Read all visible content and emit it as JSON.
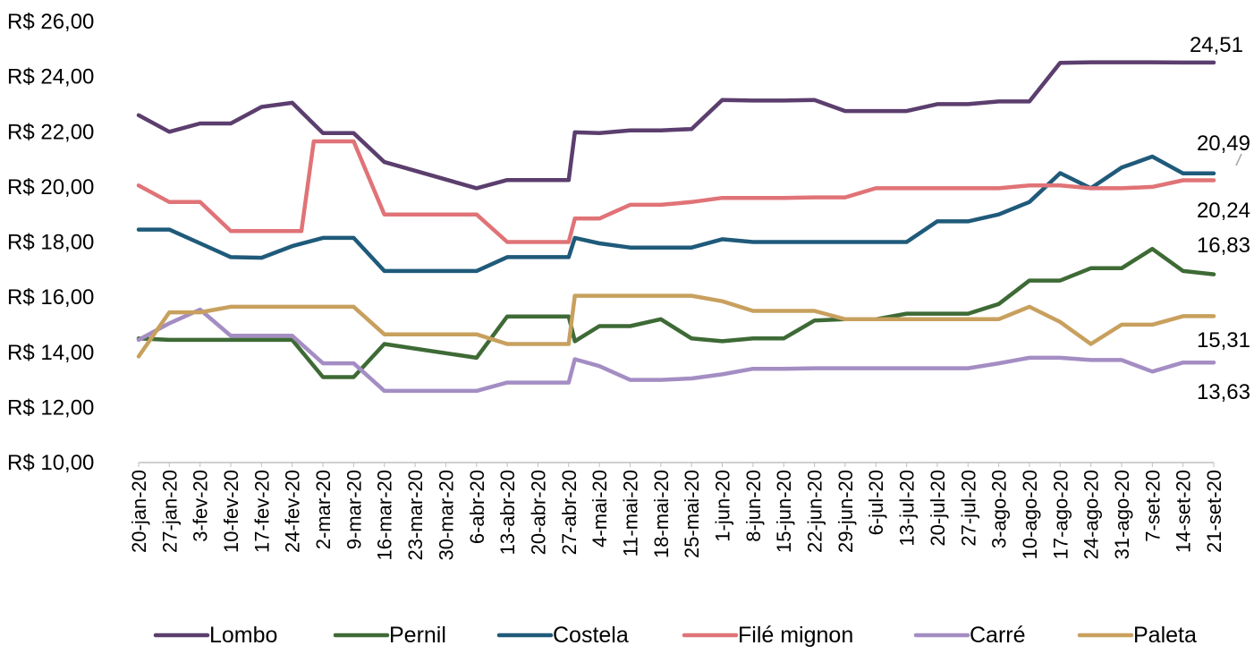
{
  "chart_data": {
    "type": "line",
    "title": "",
    "xlabel": "",
    "ylabel": "",
    "ylim": [
      10,
      26
    ],
    "y_ticks": [
      "R$ 10,00",
      "R$ 12,00",
      "R$ 14,00",
      "R$ 16,00",
      "R$ 18,00",
      "R$ 20,00",
      "R$ 22,00",
      "R$ 24,00",
      "R$ 26,00"
    ],
    "grid": false,
    "legend_position": "bottom",
    "x": [
      "20-jan-20",
      "27-jan-20",
      "3-fev-20",
      "10-fev-20",
      "17-fev-20",
      "24-fev-20",
      "2-mar-20",
      "9-mar-20",
      "16-mar-20",
      "23-mar-20",
      "30-mar-20",
      "6-abr-20",
      "13-abr-20",
      "20-abr-20",
      "27-abr-20",
      "4-mai-20",
      "11-mai-20",
      "18-mai-20",
      "25-mai-20",
      "1-jun-20",
      "8-jun-20",
      "15-jun-20",
      "22-jun-20",
      "29-jun-20",
      "6-jul-20",
      "13-jul-20",
      "20-jul-20",
      "27-jul-20",
      "3-ago-20",
      "10-ago-20",
      "17-ago-20",
      "24-ago-20",
      "31-ago-20",
      "7-set-20",
      "14-set-20",
      "21-set-20"
    ],
    "series": [
      {
        "name": "Lombo",
        "color": "#5b3e6e",
        "values": [
          22.6,
          22.0,
          22.3,
          22.3,
          22.9,
          23.05,
          21.95,
          21.95,
          20.9,
          20.45,
          20.0,
          19.95,
          20.25,
          20.25,
          20.25,
          21.95,
          22.05,
          22.05,
          22.1,
          23.15,
          23.13,
          23.13,
          23.15,
          22.75,
          22.75,
          22.75,
          23.0,
          23.0,
          23.1,
          23.1,
          24.5,
          24.52,
          24.52,
          24.52,
          24.51,
          24.51
        ],
        "path_points": [
          [
            0,
            22.6
          ],
          [
            1,
            22.0
          ],
          [
            2,
            22.3
          ],
          [
            3,
            22.3
          ],
          [
            4,
            22.9
          ],
          [
            5,
            23.05
          ],
          [
            6,
            21.95
          ],
          [
            7,
            21.95
          ],
          [
            8,
            20.9
          ],
          [
            11,
            19.95
          ],
          [
            12,
            20.25
          ],
          [
            14,
            20.25
          ],
          [
            14.2,
            21.98
          ],
          [
            15,
            21.95
          ],
          [
            16,
            22.05
          ],
          [
            17,
            22.05
          ],
          [
            18,
            22.1
          ],
          [
            19,
            23.15
          ],
          [
            20,
            23.13
          ],
          [
            21,
            23.13
          ],
          [
            22,
            23.15
          ],
          [
            23,
            22.75
          ],
          [
            24,
            22.75
          ],
          [
            25,
            22.75
          ],
          [
            26,
            23.0
          ],
          [
            27,
            23.0
          ],
          [
            28,
            23.1
          ],
          [
            29,
            23.1
          ],
          [
            30,
            24.5
          ],
          [
            31,
            24.52
          ],
          [
            32,
            24.52
          ],
          [
            33,
            24.52
          ],
          [
            34,
            24.51
          ],
          [
            35,
            24.51
          ]
        ]
      },
      {
        "name": "Pernil",
        "color": "#3e6a35",
        "values": [
          14.5,
          14.45,
          14.45,
          14.45,
          14.45,
          14.45,
          13.1,
          13.1,
          14.3,
          14.1,
          13.95,
          13.8,
          15.3,
          15.3,
          15.3,
          14.95,
          14.95,
          15.2,
          14.5,
          14.4,
          14.5,
          14.5,
          15.15,
          15.2,
          15.2,
          15.4,
          15.4,
          15.4,
          15.75,
          16.6,
          16.6,
          17.05,
          17.05,
          17.75,
          16.95,
          16.83
        ],
        "path_points": [
          [
            0,
            14.5
          ],
          [
            1,
            14.45
          ],
          [
            2,
            14.45
          ],
          [
            3,
            14.45
          ],
          [
            4,
            14.45
          ],
          [
            5,
            14.45
          ],
          [
            6,
            13.1
          ],
          [
            7,
            13.1
          ],
          [
            8,
            14.3
          ],
          [
            11,
            13.8
          ],
          [
            12,
            15.3
          ],
          [
            13,
            15.3
          ],
          [
            14,
            15.3
          ],
          [
            14.2,
            14.4
          ],
          [
            15,
            14.95
          ],
          [
            16,
            14.95
          ],
          [
            17,
            15.2
          ],
          [
            18,
            14.5
          ],
          [
            19,
            14.4
          ],
          [
            20,
            14.5
          ],
          [
            21,
            14.5
          ],
          [
            22,
            15.15
          ],
          [
            23,
            15.2
          ],
          [
            24,
            15.2
          ],
          [
            25,
            15.4
          ],
          [
            26,
            15.4
          ],
          [
            27,
            15.4
          ],
          [
            28,
            15.75
          ],
          [
            29,
            16.6
          ],
          [
            30,
            16.6
          ],
          [
            31,
            17.05
          ],
          [
            32,
            17.05
          ],
          [
            33,
            17.75
          ],
          [
            34,
            16.95
          ],
          [
            35,
            16.83
          ]
        ]
      },
      {
        "name": "Costela",
        "color": "#1f5a7a",
        "values": [
          18.45,
          18.45,
          17.95,
          17.45,
          17.45,
          17.85,
          18.15,
          18.15,
          16.95,
          16.95,
          16.95,
          16.95,
          17.45,
          17.45,
          17.45,
          17.95,
          17.8,
          17.8,
          17.8,
          18.1,
          18.0,
          18.0,
          18.0,
          18.0,
          18.0,
          18.0,
          18.75,
          18.75,
          19.0,
          19.45,
          20.5,
          19.95,
          20.7,
          21.1,
          20.49,
          20.49
        ],
        "path_points": [
          [
            0,
            18.45
          ],
          [
            1,
            18.45
          ],
          [
            2,
            17.95
          ],
          [
            3,
            17.45
          ],
          [
            4,
            17.43
          ],
          [
            5,
            17.85
          ],
          [
            6,
            18.15
          ],
          [
            7,
            18.15
          ],
          [
            8,
            16.95
          ],
          [
            9,
            16.95
          ],
          [
            10,
            16.95
          ],
          [
            11,
            16.95
          ],
          [
            12,
            17.45
          ],
          [
            13,
            17.45
          ],
          [
            14,
            17.45
          ],
          [
            14.2,
            18.15
          ],
          [
            15,
            17.95
          ],
          [
            16,
            17.8
          ],
          [
            17,
            17.8
          ],
          [
            18,
            17.8
          ],
          [
            19,
            18.1
          ],
          [
            20,
            18.0
          ],
          [
            21,
            18.0
          ],
          [
            22,
            18.0
          ],
          [
            23,
            18.0
          ],
          [
            24,
            18.0
          ],
          [
            25,
            18.0
          ],
          [
            26,
            18.75
          ],
          [
            27,
            18.75
          ],
          [
            28,
            19.0
          ],
          [
            29,
            19.45
          ],
          [
            30,
            20.5
          ],
          [
            31,
            19.95
          ],
          [
            32,
            20.7
          ],
          [
            33,
            21.1
          ],
          [
            34,
            20.49
          ],
          [
            35,
            20.49
          ]
        ]
      },
      {
        "name": "Filé mignon",
        "color": "#e07377",
        "values": [
          20.05,
          19.45,
          19.45,
          18.4,
          18.4,
          18.4,
          21.65,
          21.65,
          19.0,
          19.0,
          19.0,
          19.0,
          18.0,
          18.0,
          18.0,
          18.85,
          19.35,
          19.35,
          19.45,
          19.6,
          19.6,
          19.6,
          19.6,
          19.6,
          19.95,
          19.95,
          19.95,
          19.95,
          19.95,
          20.05,
          20.05,
          19.95,
          19.95,
          20.0,
          20.24,
          20.24
        ],
        "path_points": [
          [
            0,
            20.05
          ],
          [
            1,
            19.45
          ],
          [
            2,
            19.45
          ],
          [
            3,
            18.4
          ],
          [
            4,
            18.4
          ],
          [
            5,
            18.4
          ],
          [
            5.3,
            18.4
          ],
          [
            5.7,
            21.65
          ],
          [
            7,
            21.65
          ],
          [
            8,
            19.0
          ],
          [
            9,
            19.0
          ],
          [
            10,
            19.0
          ],
          [
            11,
            19.0
          ],
          [
            12,
            18.0
          ],
          [
            13,
            18.0
          ],
          [
            14,
            18.0
          ],
          [
            14.2,
            18.85
          ],
          [
            15,
            18.85
          ],
          [
            16,
            19.35
          ],
          [
            17,
            19.35
          ],
          [
            18,
            19.45
          ],
          [
            19,
            19.6
          ],
          [
            20,
            19.6
          ],
          [
            21,
            19.6
          ],
          [
            22,
            19.62
          ],
          [
            23,
            19.62
          ],
          [
            24,
            19.95
          ],
          [
            25,
            19.95
          ],
          [
            26,
            19.95
          ],
          [
            27,
            19.95
          ],
          [
            28,
            19.95
          ],
          [
            29,
            20.05
          ],
          [
            30,
            20.05
          ],
          [
            31,
            19.95
          ],
          [
            32,
            19.95
          ],
          [
            33,
            20.0
          ],
          [
            34,
            20.24
          ],
          [
            35,
            20.24
          ]
        ]
      },
      {
        "name": "Carré",
        "color": "#a48dc3",
        "values": [
          14.45,
          15.05,
          15.55,
          14.6,
          14.6,
          14.6,
          13.6,
          13.6,
          12.6,
          12.6,
          12.6,
          12.6,
          12.9,
          12.9,
          12.9,
          13.5,
          13.0,
          13.0,
          13.05,
          13.2,
          13.4,
          13.4,
          13.42,
          13.42,
          13.42,
          13.42,
          13.42,
          13.42,
          13.6,
          13.8,
          13.8,
          13.72,
          13.72,
          13.3,
          13.63,
          13.63
        ],
        "path_points": [
          [
            0,
            14.45
          ],
          [
            1,
            15.05
          ],
          [
            2,
            15.55
          ],
          [
            3,
            14.6
          ],
          [
            4,
            14.6
          ],
          [
            5,
            14.6
          ],
          [
            6,
            13.6
          ],
          [
            7,
            13.6
          ],
          [
            8,
            12.6
          ],
          [
            9,
            12.6
          ],
          [
            10,
            12.6
          ],
          [
            11,
            12.6
          ],
          [
            12,
            12.9
          ],
          [
            13,
            12.9
          ],
          [
            14,
            12.9
          ],
          [
            14.2,
            13.75
          ],
          [
            15,
            13.5
          ],
          [
            16,
            13.0
          ],
          [
            17,
            13.0
          ],
          [
            18,
            13.05
          ],
          [
            19,
            13.2
          ],
          [
            20,
            13.4
          ],
          [
            21,
            13.4
          ],
          [
            22,
            13.42
          ],
          [
            23,
            13.42
          ],
          [
            24,
            13.42
          ],
          [
            25,
            13.42
          ],
          [
            26,
            13.42
          ],
          [
            27,
            13.42
          ],
          [
            28,
            13.6
          ],
          [
            29,
            13.8
          ],
          [
            30,
            13.8
          ],
          [
            31,
            13.72
          ],
          [
            32,
            13.72
          ],
          [
            33,
            13.3
          ],
          [
            34,
            13.63
          ],
          [
            35,
            13.63
          ]
        ]
      },
      {
        "name": "Paleta",
        "color": "#c8a05e",
        "values": [
          13.85,
          15.45,
          15.45,
          15.65,
          15.65,
          15.65,
          15.65,
          15.65,
          14.65,
          14.65,
          14.65,
          14.65,
          14.3,
          14.3,
          14.3,
          16.05,
          16.05,
          16.05,
          16.05,
          15.85,
          15.5,
          15.5,
          15.5,
          15.2,
          15.2,
          15.2,
          15.2,
          15.2,
          15.2,
          15.65,
          15.1,
          14.3,
          15.0,
          15.0,
          15.31,
          15.31
        ],
        "path_points": [
          [
            0,
            13.85
          ],
          [
            1,
            15.45
          ],
          [
            2,
            15.45
          ],
          [
            3,
            15.65
          ],
          [
            4,
            15.65
          ],
          [
            5,
            15.65
          ],
          [
            6,
            15.65
          ],
          [
            7,
            15.65
          ],
          [
            8,
            14.65
          ],
          [
            9,
            14.65
          ],
          [
            10,
            14.65
          ],
          [
            11,
            14.65
          ],
          [
            12,
            14.3
          ],
          [
            13,
            14.3
          ],
          [
            14,
            14.3
          ],
          [
            14.2,
            16.05
          ],
          [
            15,
            16.05
          ],
          [
            16,
            16.05
          ],
          [
            17,
            16.05
          ],
          [
            18,
            16.05
          ],
          [
            19,
            15.85
          ],
          [
            20,
            15.5
          ],
          [
            21,
            15.5
          ],
          [
            22,
            15.5
          ],
          [
            23,
            15.2
          ],
          [
            24,
            15.2
          ],
          [
            25,
            15.2
          ],
          [
            26,
            15.2
          ],
          [
            27,
            15.2
          ],
          [
            28,
            15.2
          ],
          [
            29,
            15.65
          ],
          [
            30,
            15.1
          ],
          [
            31,
            14.3
          ],
          [
            32,
            15.0
          ],
          [
            33,
            15.0
          ],
          [
            34,
            15.31
          ],
          [
            35,
            15.31
          ]
        ]
      }
    ],
    "annotations": [
      {
        "series": "Lombo",
        "text": "24,51"
      },
      {
        "series": "Costela",
        "text": "20,49"
      },
      {
        "series": "Filé mignon",
        "text": "20,24"
      },
      {
        "series": "Pernil",
        "text": "16,83"
      },
      {
        "series": "Paleta",
        "text": "15,31"
      },
      {
        "series": "Carré",
        "text": "13,63"
      }
    ]
  }
}
